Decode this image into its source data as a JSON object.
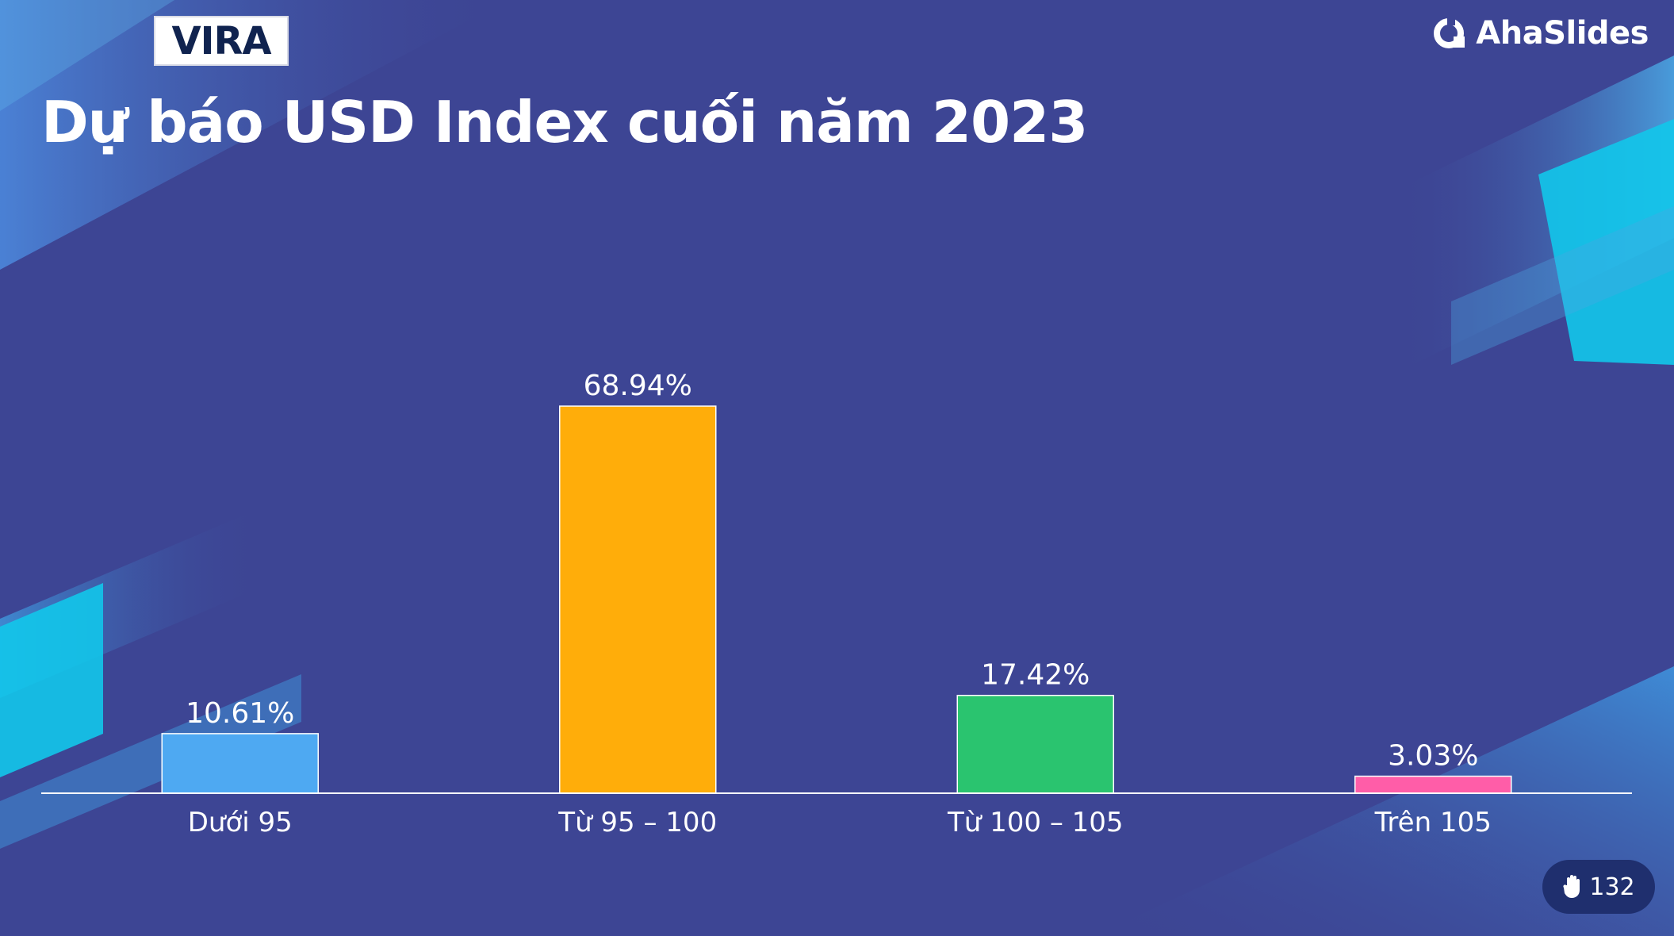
{
  "header": {
    "logo_text": "VIRA",
    "brand_name": "AhaSlides",
    "title": "Dự báo USD Index cuối năm 2023"
  },
  "footer": {
    "response_count": "132",
    "response_icon": "hand-icon"
  },
  "colors": {
    "background": "#3d4594",
    "bars": [
      "#4ea9f2",
      "#ffad0a",
      "#2ac46f",
      "#ff5da8"
    ],
    "text": "#ffffff"
  },
  "chart_data": {
    "type": "bar",
    "categories": [
      "Dưới 95",
      "Từ 95 – 100",
      "Từ 100 – 105",
      "Trên 105"
    ],
    "values": [
      10.61,
      68.94,
      17.42,
      3.03
    ],
    "value_labels": [
      "10.61%",
      "68.94%",
      "17.42%",
      "3.03%"
    ],
    "title": "",
    "xlabel": "",
    "ylabel": "",
    "ylim": [
      0,
      68.94
    ],
    "grid": false,
    "legend": "none"
  }
}
